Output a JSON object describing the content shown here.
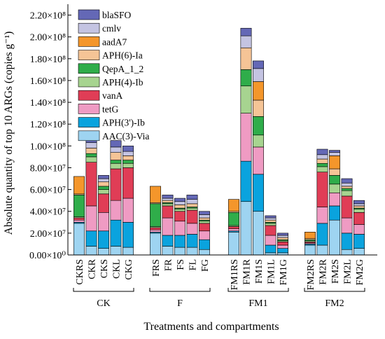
{
  "chart_data": {
    "type": "bar",
    "stacked": true,
    "ylabel": "Absolute quantity of top 10 ARGs (copies g⁻¹)",
    "xlabel": "Treatments and compartments",
    "ylim": [
      0,
      230000000
    ],
    "yticks": [
      {
        "value": 0,
        "label": "0.00×10⁰"
      },
      {
        "value": 20000000,
        "label": "2.00×10⁷"
      },
      {
        "value": 40000000,
        "label": "4.00×10⁷"
      },
      {
        "value": 60000000,
        "label": "6.00×10⁷"
      },
      {
        "value": 80000000,
        "label": "8.00×10⁷"
      },
      {
        "value": 100000000,
        "label": "1.00×10⁸"
      },
      {
        "value": 120000000,
        "label": "1.20×10⁸"
      },
      {
        "value": 140000000,
        "label": "1.40×10⁸"
      },
      {
        "value": 160000000,
        "label": "1.60×10⁸"
      },
      {
        "value": 180000000,
        "label": "1.80×10⁸"
      },
      {
        "value": 200000000,
        "label": "2.00×10⁸"
      },
      {
        "value": 220000000,
        "label": "2.20×10⁸"
      }
    ],
    "groups": [
      {
        "name": "CK",
        "categories": [
          "CKRS",
          "CKR",
          "CKS",
          "CKL",
          "CKG"
        ]
      },
      {
        "name": "F",
        "categories": [
          "FRS",
          "FR",
          "FS",
          "FL",
          "FG"
        ]
      },
      {
        "name": "FM1",
        "categories": [
          "FM1RS",
          "FM1R",
          "FM1S",
          "FM1L",
          "FM1G"
        ]
      },
      {
        "name": "FM2",
        "categories": [
          "FM2RS",
          "FM2R",
          "FM2S",
          "FM2L",
          "FM2G"
        ]
      }
    ],
    "legend_position": "top-left",
    "series": [
      {
        "name": "AAC(3)-Via",
        "color": "#9ed4f1",
        "values": [
          29000000,
          8000000,
          6000000,
          8000000,
          7000000,
          20000000,
          8000000,
          7000000,
          7000000,
          5000000,
          21000000,
          49000000,
          40000000,
          2000000,
          2000000,
          9000000,
          9000000,
          32000000,
          5000000,
          6000000
        ]
      },
      {
        "name": "APH(3')-Ib",
        "color": "#0aa3de",
        "values": [
          1000000,
          14000000,
          16000000,
          24000000,
          23000000,
          1000000,
          10000000,
          11000000,
          12000000,
          9000000,
          1000000,
          37000000,
          34000000,
          7000000,
          4000000,
          1000000,
          20000000,
          13000000,
          15000000,
          13000000
        ]
      },
      {
        "name": "tetG",
        "color": "#ef9bc3",
        "values": [
          2000000,
          23000000,
          17000000,
          18000000,
          22000000,
          2000000,
          16000000,
          13000000,
          10000000,
          8000000,
          2000000,
          44000000,
          25000000,
          9000000,
          3000000,
          1000000,
          15000000,
          12000000,
          14000000,
          9000000
        ]
      },
      {
        "name": "vanA",
        "color": "#e03d56",
        "values": [
          2000000,
          40000000,
          17000000,
          29000000,
          28000000,
          2000000,
          11000000,
          9000000,
          12000000,
          7000000,
          2000000,
          0,
          0,
          9000000,
          3000000,
          1000000,
          32000000,
          0,
          20000000,
          11000000
        ]
      },
      {
        "name": "APH(4)-Ib",
        "color": "#a7d490",
        "values": [
          1000000,
          5000000,
          4000000,
          5000000,
          4000000,
          1000000,
          2000000,
          2000000,
          2000000,
          2000000,
          1000000,
          25000000,
          11000000,
          2000000,
          1000000,
          1000000,
          5000000,
          8000000,
          5000000,
          3000000
        ]
      },
      {
        "name": "QepA_1_2",
        "color": "#2fad4a",
        "values": [
          20000000,
          3000000,
          3000000,
          3000000,
          3000000,
          21000000,
          1000000,
          1000000,
          1000000,
          1000000,
          12000000,
          15000000,
          17000000,
          1000000,
          1000000,
          1000000,
          3000000,
          8000000,
          2000000,
          1000000
        ]
      },
      {
        "name": "APH(6)-Ia",
        "color": "#f5c496",
        "values": [
          1000000,
          5000000,
          4000000,
          7000000,
          4000000,
          1000000,
          2000000,
          3000000,
          3000000,
          2000000,
          1000000,
          20000000,
          15000000,
          2000000,
          2000000,
          1000000,
          4000000,
          6000000,
          2000000,
          2000000
        ]
      },
      {
        "name": "aadA7",
        "color": "#f4962b",
        "values": [
          16000000,
          0,
          0,
          0,
          0,
          15000000,
          0,
          0,
          0,
          0,
          11000000,
          0,
          17000000,
          0,
          0,
          6000000,
          0,
          12000000,
          0,
          0
        ]
      },
      {
        "name": "cmlv",
        "color": "#c4c4e2",
        "values": [
          0,
          5000000,
          3000000,
          5000000,
          4000000,
          0,
          2000000,
          3000000,
          4000000,
          3000000,
          0,
          11000000,
          12000000,
          2000000,
          2000000,
          0,
          4000000,
          3000000,
          3000000,
          2000000
        ]
      },
      {
        "name": "blaSFO",
        "color": "#6468b6",
        "values": [
          0,
          6000000,
          3000000,
          6000000,
          5000000,
          0,
          3000000,
          3000000,
          4000000,
          3000000,
          0,
          7000000,
          7000000,
          2000000,
          2000000,
          0,
          5000000,
          2000000,
          4000000,
          3000000
        ]
      }
    ]
  }
}
